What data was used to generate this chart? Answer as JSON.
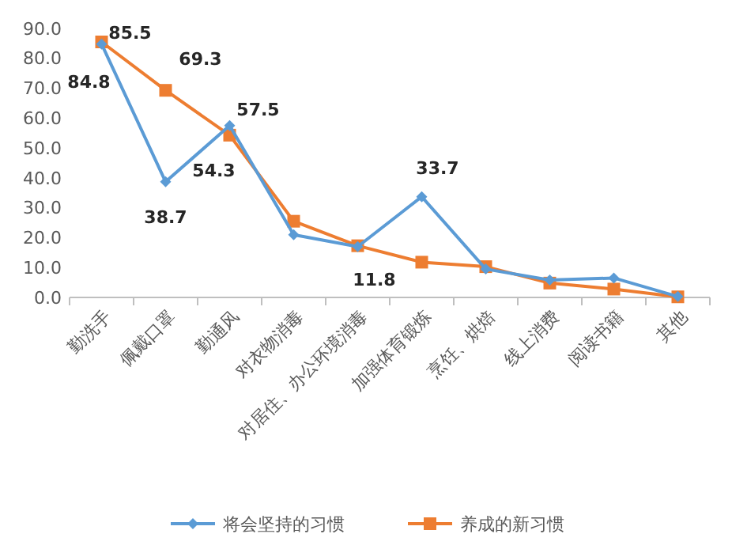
{
  "chart_data": {
    "type": "line",
    "categories": [
      "勤洗手",
      "佩戴口罩",
      "勤通风",
      "对衣物消毒",
      "对居住、办公环境消毒",
      "加强体育锻炼",
      "烹饪、烘焙",
      "线上消费",
      "阅读书籍",
      "其他"
    ],
    "series": [
      {
        "name": "将会坚持的习惯",
        "color": "#5b9bd5",
        "marker": "diamond",
        "values": [
          84.8,
          38.7,
          57.5,
          21.0,
          17.0,
          33.7,
          9.5,
          5.8,
          6.5,
          0.3
        ],
        "value_labels": [
          "84.8",
          "38.7",
          "57.5",
          null,
          null,
          "33.7",
          null,
          null,
          null,
          null
        ]
      },
      {
        "name": "养成的新习惯",
        "color": "#ed7d31",
        "marker": "square",
        "values": [
          85.5,
          69.3,
          54.3,
          25.5,
          17.3,
          11.8,
          10.3,
          4.8,
          2.8,
          0.2
        ],
        "value_labels": [
          "85.5",
          "69.3",
          "54.3",
          null,
          null,
          "11.8",
          null,
          null,
          null,
          null
        ]
      }
    ],
    "ylim": [
      0,
      90
    ],
    "yticks": [
      {
        "value": 0,
        "label": "0.0"
      },
      {
        "value": 10,
        "label": "10.0"
      },
      {
        "value": 20,
        "label": "20.0"
      },
      {
        "value": 30,
        "label": "30.0"
      },
      {
        "value": 40,
        "label": "40.0"
      },
      {
        "value": 50,
        "label": "50.0"
      },
      {
        "value": 60,
        "label": "60.0"
      },
      {
        "value": 70,
        "label": "70.0"
      },
      {
        "value": 80,
        "label": "80.0"
      },
      {
        "value": 90,
        "label": "90.0"
      }
    ],
    "grid": false,
    "legend": "bottom"
  }
}
